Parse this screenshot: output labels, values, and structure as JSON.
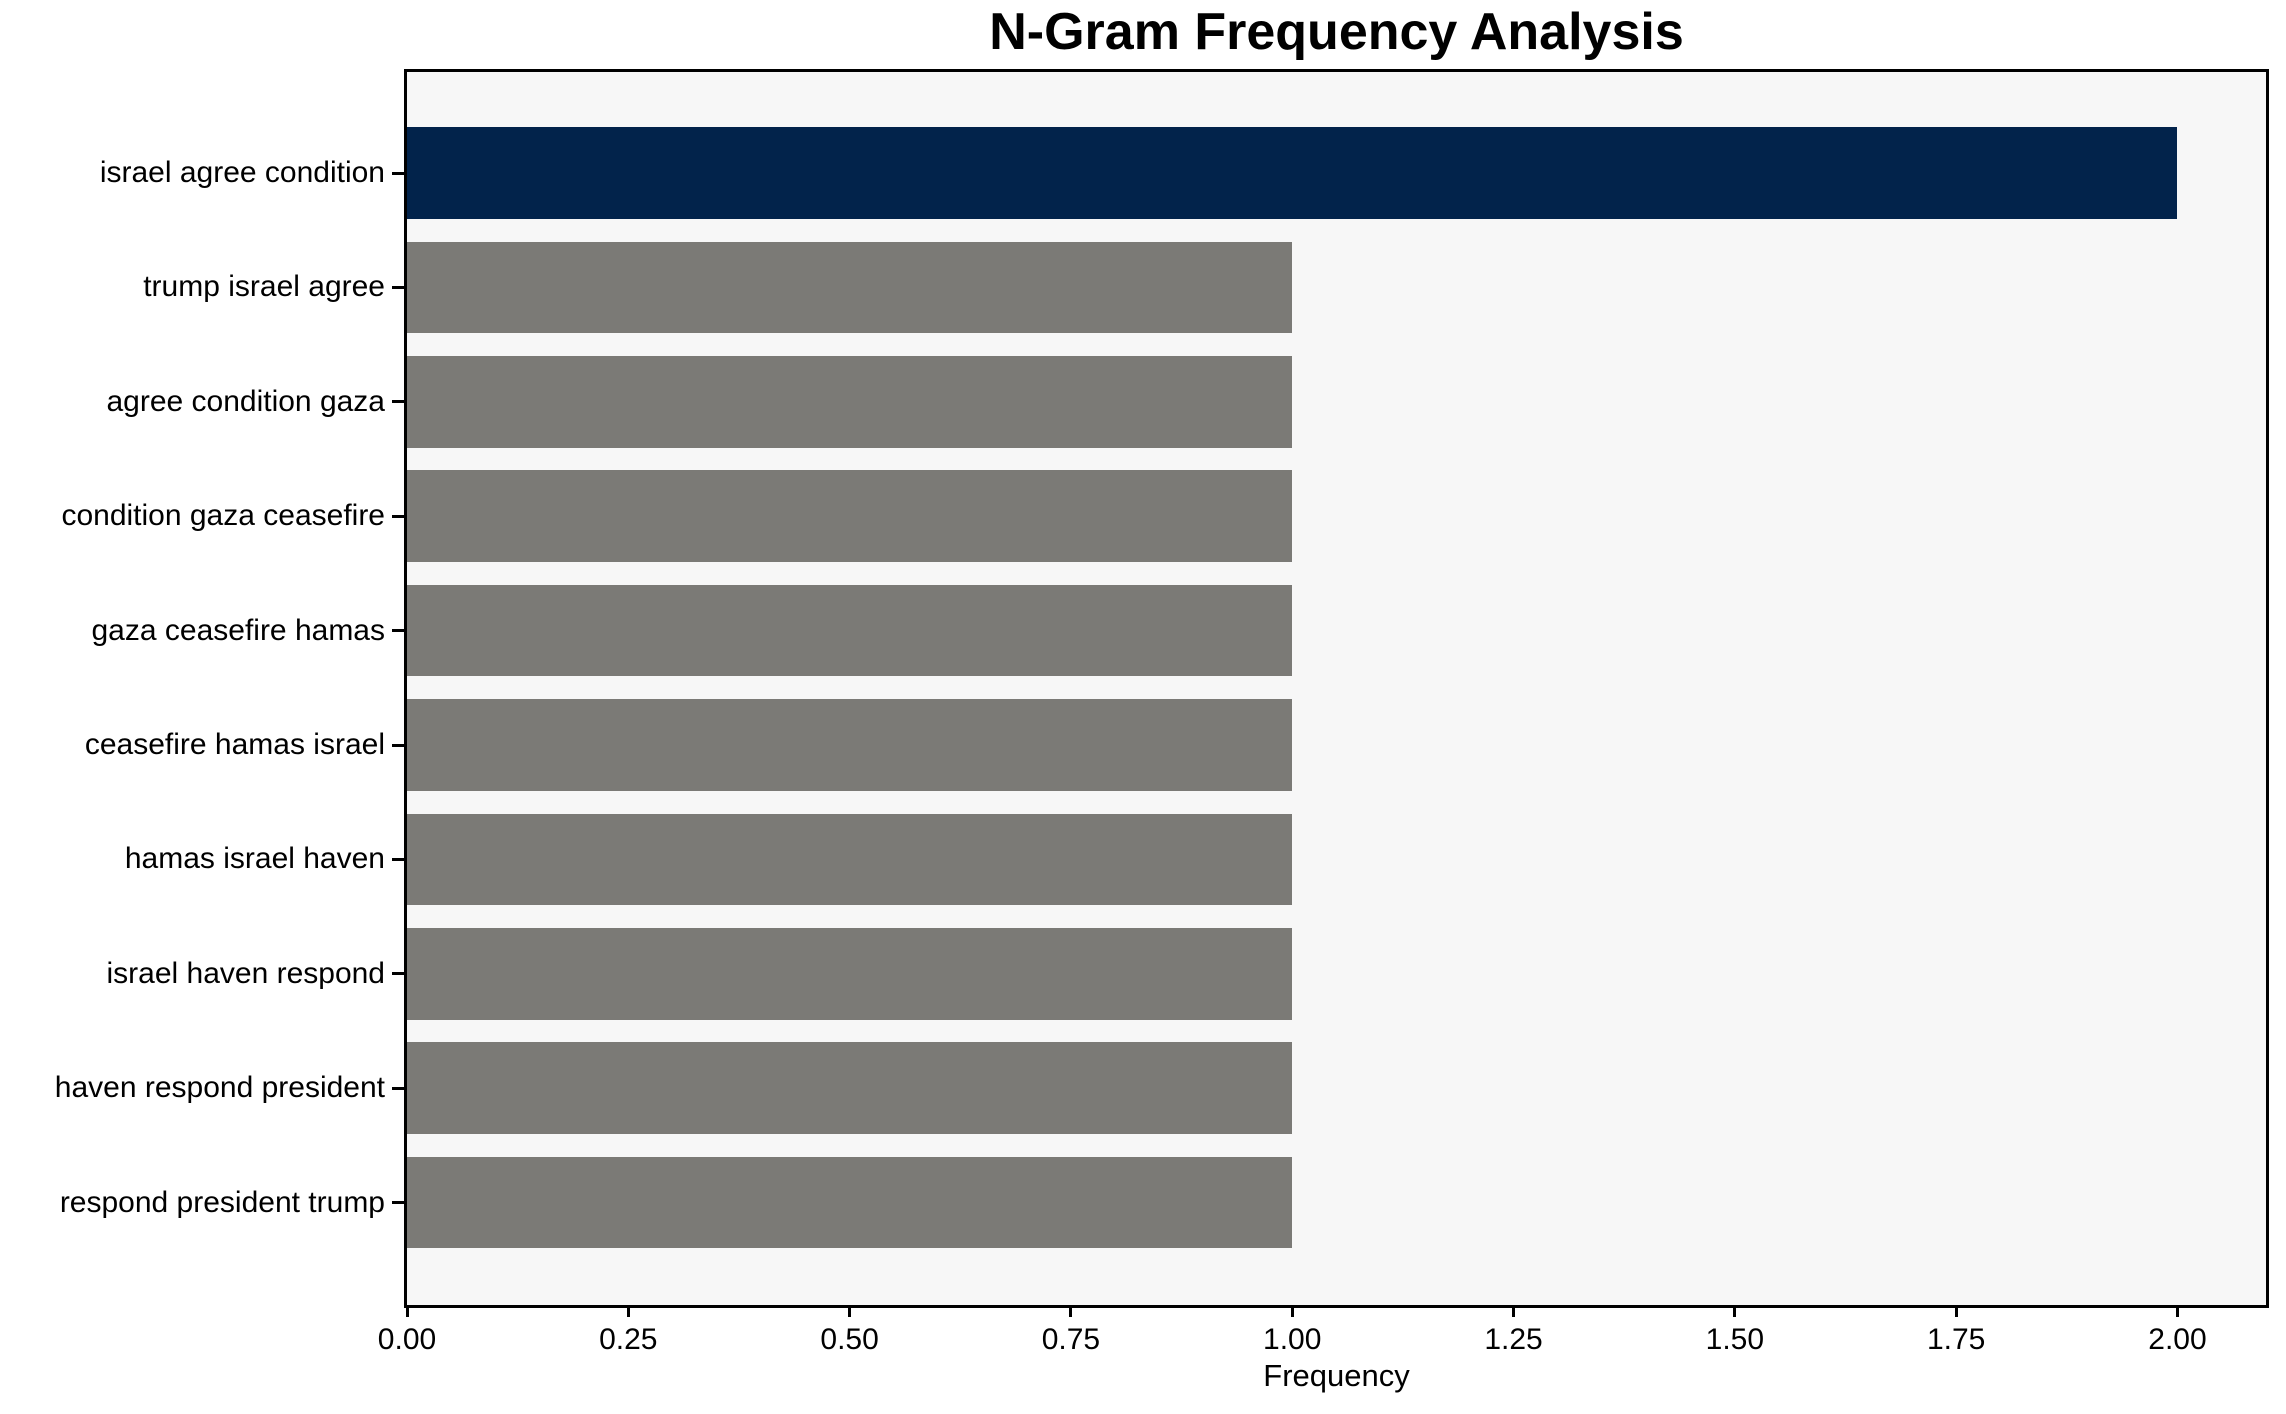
{
  "title": "N-Gram Frequency Analysis",
  "chart_data": {
    "type": "bar",
    "orientation": "horizontal",
    "title": "N-Gram Frequency Analysis",
    "xlabel": "Frequency",
    "ylabel": "",
    "categories": [
      "israel agree condition",
      "trump israel agree",
      "agree condition gaza",
      "condition gaza ceasefire",
      "gaza ceasefire hamas",
      "ceasefire hamas israel",
      "hamas israel haven",
      "israel haven respond",
      "haven respond president",
      "respond president trump"
    ],
    "values": [
      2,
      1,
      1,
      1,
      1,
      1,
      1,
      1,
      1,
      1
    ],
    "highlight_index": 0,
    "colors": {
      "highlight_bar": "#02234b",
      "default_bar": "#7b7a76",
      "plot_background": "#f7f7f7",
      "spine": "#000000",
      "text": "#000000"
    },
    "xlim": [
      0,
      2.1
    ],
    "xticks": {
      "values": [
        0.0,
        0.25,
        0.5,
        0.75,
        1.0,
        1.25,
        1.5,
        1.75,
        2.0
      ],
      "labels": [
        "0.00",
        "0.25",
        "0.50",
        "0.75",
        "1.00",
        "1.25",
        "1.50",
        "1.75",
        "2.00"
      ]
    },
    "grid": false,
    "legend": null
  }
}
